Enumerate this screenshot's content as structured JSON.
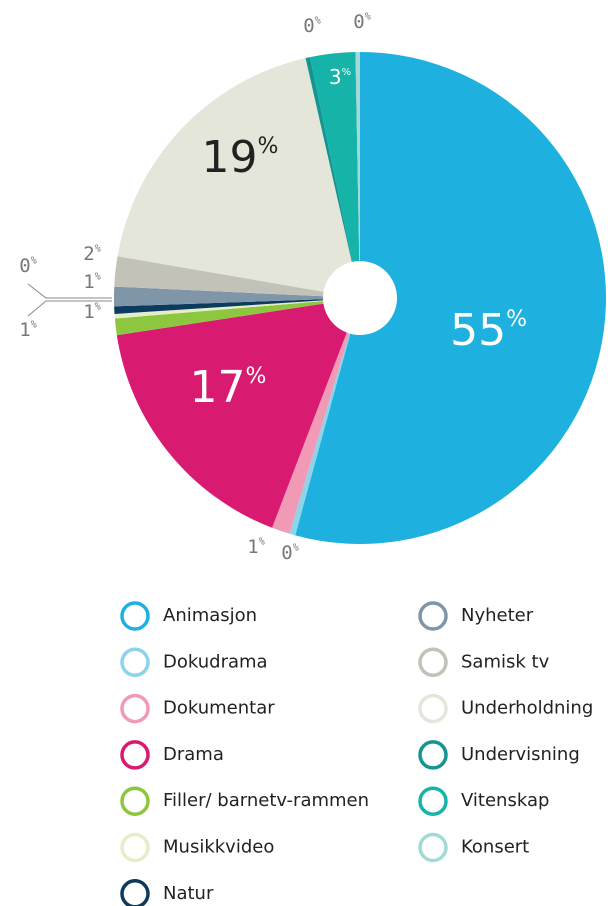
{
  "chart_data": {
    "type": "pie",
    "categories": [
      "Animasjon",
      "Dokudrama",
      "Dokumentar",
      "Drama",
      "Filler/ barnetv-rammen",
      "Musikkvideo",
      "Natur",
      "Nyheter",
      "Samisk tv",
      "Underholdning",
      "Undervisning",
      "Vitenskap",
      "Konsert"
    ],
    "values": [
      55,
      0.4,
      1.2,
      17,
      1.1,
      0.3,
      0.5,
      1.3,
      2,
      19,
      0.3,
      3,
      0.3
    ],
    "value_labels": [
      "55%",
      "0%",
      "1%",
      "17%",
      "1%",
      "0%",
      "1%",
      "1%",
      "2%",
      "19%",
      "0%",
      "3%",
      "0%"
    ],
    "colors": [
      "#1eb1e0",
      "#8dd3ea",
      "#f09ab5",
      "#d91a71",
      "#8dc63f",
      "#e4eecb",
      "#0d3b5e",
      "#7f95a8",
      "#c3c2b8",
      "#e5e6da",
      "#12968f",
      "#15b3a8",
      "#a4d9d6"
    ]
  }
}
